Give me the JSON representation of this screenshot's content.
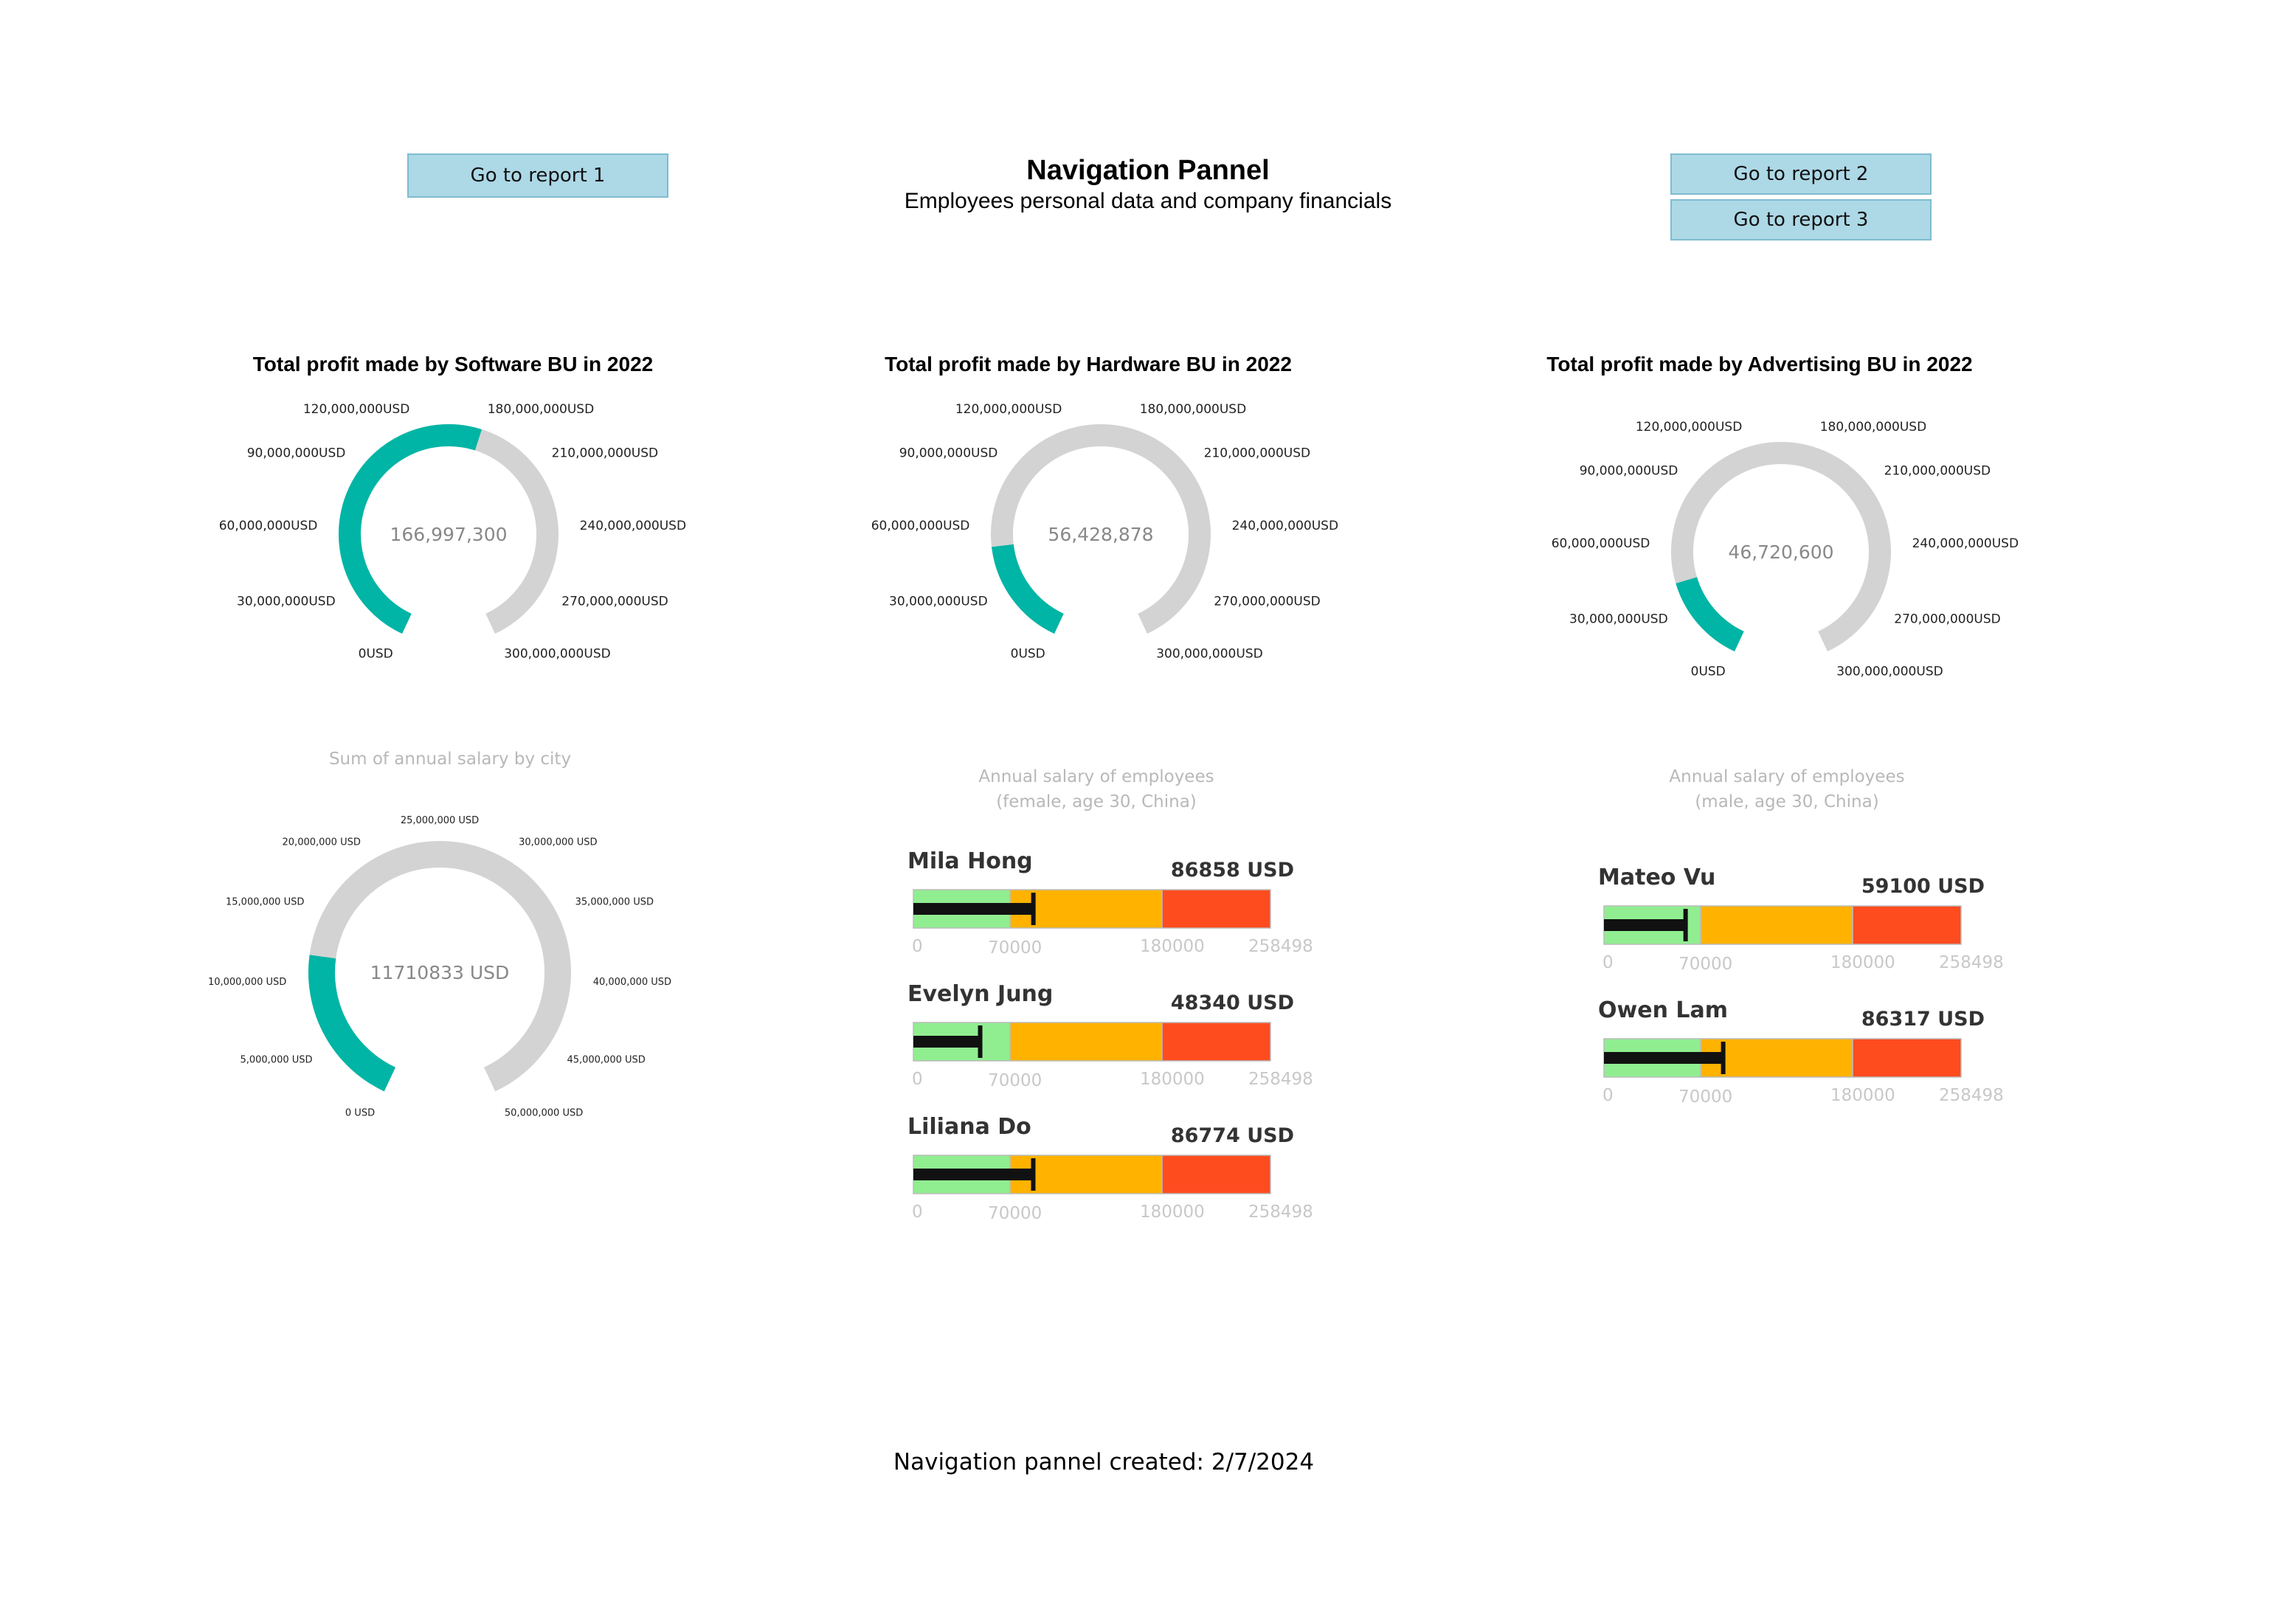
{
  "header": {
    "title": "Navigation Pannel",
    "subtitle": "Employees personal data and company financials"
  },
  "buttons": {
    "report1": "Go to report 1",
    "report2": "Go to report 2",
    "report3": "Go to report 3"
  },
  "footer": {
    "text": "Navigation pannel created: 2/7/2024"
  },
  "colors": {
    "gauge_fill": "#00b5a5",
    "gauge_track": "#d3d3d3",
    "band_low": "#90ee90",
    "band_mid": "#ffb300",
    "band_high": "#ff4c1f",
    "bar": "#111111"
  },
  "chart_data": [
    {
      "type": "gauge",
      "title": "Total profit made by Software BU in 2022",
      "value": 166997300,
      "value_label": "166,997,300",
      "min": 0,
      "max": 300000000,
      "ticks": [
        "0USD",
        "30,000,000USD",
        "60,000,000USD",
        "90,000,000USD",
        "120,000,000USD",
        "180,000,000USD",
        "210,000,000USD",
        "240,000,000USD",
        "270,000,000USD",
        "300,000,000USD"
      ]
    },
    {
      "type": "gauge",
      "title": "Total profit made by Hardware BU in 2022",
      "value": 56428878,
      "value_label": "56,428,878",
      "min": 0,
      "max": 300000000,
      "ticks": [
        "0USD",
        "30,000,000USD",
        "60,000,000USD",
        "90,000,000USD",
        "120,000,000USD",
        "180,000,000USD",
        "210,000,000USD",
        "240,000,000USD",
        "270,000,000USD",
        "300,000,000USD"
      ]
    },
    {
      "type": "gauge",
      "title": "Total profit made by Advertising BU in 2022",
      "value": 46720600,
      "value_label": "46,720,600",
      "min": 0,
      "max": 300000000,
      "ticks": [
        "0USD",
        "30,000,000USD",
        "60,000,000USD",
        "90,000,000USD",
        "120,000,000USD",
        "180,000,000USD",
        "210,000,000USD",
        "240,000,000USD",
        "270,000,000USD",
        "300,000,000USD"
      ]
    },
    {
      "type": "gauge",
      "title": "Sum of annual salary by city",
      "value": 11710833,
      "value_label": "11710833 USD",
      "min": 0,
      "max": 50000000,
      "ticks": [
        "0 USD",
        "5,000,000 USD",
        "10,000,000 USD",
        "15,000,000 USD",
        "20,000,000 USD",
        "25,000,000 USD",
        "30,000,000 USD",
        "35,000,000 USD",
        "40,000,000 USD",
        "45,000,000 USD",
        "50,000,000 USD"
      ]
    },
    {
      "type": "bullet",
      "title": "Annual salary of employees",
      "subtitle": "(female, age 30, China)",
      "axis_ticks": [
        "0",
        "70000",
        "180000",
        "258498"
      ],
      "bands": [
        70000,
        180000,
        258498
      ],
      "max": 258498,
      "people": [
        {
          "name": "Mila Hong",
          "value": 86858,
          "value_label": "86858 USD"
        },
        {
          "name": "Evelyn Jung",
          "value": 48340,
          "value_label": "48340 USD"
        },
        {
          "name": "Liliana Do",
          "value": 86774,
          "value_label": "86774 USD"
        }
      ]
    },
    {
      "type": "bullet",
      "title": "Annual salary of employees",
      "subtitle": "(male, age 30, China)",
      "axis_ticks": [
        "0",
        "70000",
        "180000",
        "258498"
      ],
      "bands": [
        70000,
        180000,
        258498
      ],
      "max": 258498,
      "people": [
        {
          "name": "Mateo Vu",
          "value": 59100,
          "value_label": "59100 USD"
        },
        {
          "name": "Owen Lam",
          "value": 86317,
          "value_label": "86317 USD"
        }
      ]
    }
  ]
}
